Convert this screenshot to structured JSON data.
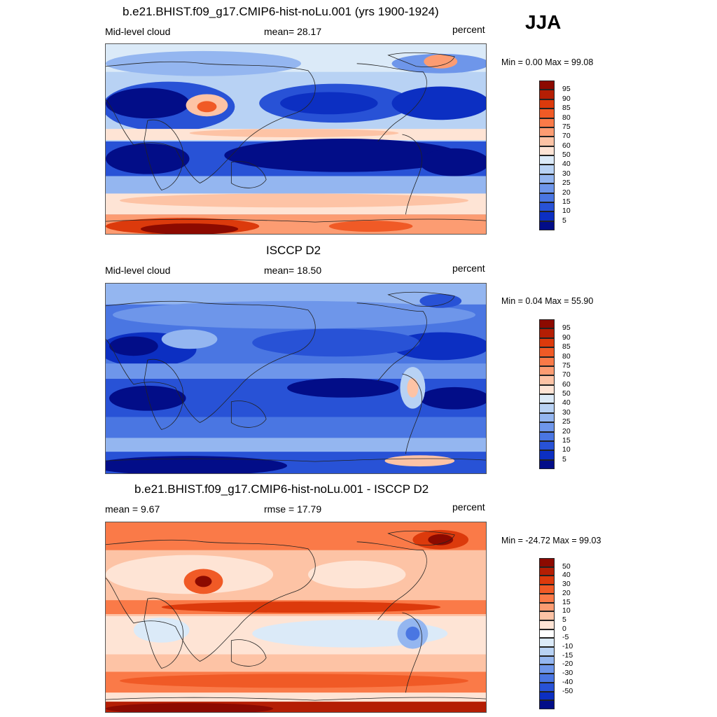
{
  "season": "JJA",
  "panels": [
    {
      "title": "b.e21.BHIST.f09_g17.CMIP6-hist-noLu.001 (yrs 1900-1924)",
      "left_label": "Mid-level cloud",
      "center_label": "mean=  28.17",
      "units": "percent",
      "minmax": "Min =   0.00 Max =  99.08",
      "colorbar": {
        "colors": [
          "#8c0a00",
          "#b41e04",
          "#dc3a0c",
          "#f05a26",
          "#fa7a48",
          "#fc9c72",
          "#fdc3a5",
          "#fee4d5",
          "#dbeaf8",
          "#b8d2f4",
          "#94b6f0",
          "#6e96ea",
          "#4a76e2",
          "#2852d6",
          "#0c2fc2",
          "#020d88"
        ],
        "labels": [
          "95",
          "90",
          "85",
          "80",
          "75",
          "70",
          "60",
          "50",
          "40",
          "30",
          "25",
          "20",
          "15",
          "10",
          "5"
        ]
      }
    },
    {
      "title": "ISCCP D2",
      "left_label": "Mid-level cloud",
      "center_label": "mean=  18.50",
      "units": "percent",
      "minmax": "Min =   0.04 Max =  55.90",
      "colorbar": {
        "colors": [
          "#8c0a00",
          "#b41e04",
          "#dc3a0c",
          "#f05a26",
          "#fa7a48",
          "#fc9c72",
          "#fdc3a5",
          "#fee4d5",
          "#dbeaf8",
          "#b8d2f4",
          "#94b6f0",
          "#6e96ea",
          "#4a76e2",
          "#2852d6",
          "#0c2fc2",
          "#020d88"
        ],
        "labels": [
          "95",
          "90",
          "85",
          "80",
          "75",
          "70",
          "60",
          "50",
          "40",
          "30",
          "25",
          "20",
          "15",
          "10",
          "5"
        ]
      }
    },
    {
      "title": "b.e21.BHIST.f09_g17.CMIP6-hist-noLu.001 - ISCCP D2",
      "left_label": "mean =   9.67",
      "center_label": "rmse =  17.79",
      "units": "percent",
      "minmax": "Min = -24.72 Max =  99.03",
      "colorbar": {
        "colors": [
          "#8c0a00",
          "#b41e04",
          "#dc3a0c",
          "#f05a26",
          "#fa7a48",
          "#fc9c72",
          "#fdc3a5",
          "#fee4d5",
          "#ffffff",
          "#dbeaf8",
          "#b8d2f4",
          "#94b6f0",
          "#6e96ea",
          "#4a76e2",
          "#2852d6",
          "#0c2fc2",
          "#020d88"
        ],
        "labels": [
          "50",
          "40",
          "30",
          "20",
          "15",
          "10",
          "5",
          "0",
          "-5",
          "-10",
          "-15",
          "-20",
          "-30",
          "-40",
          "-50"
        ]
      }
    }
  ]
}
